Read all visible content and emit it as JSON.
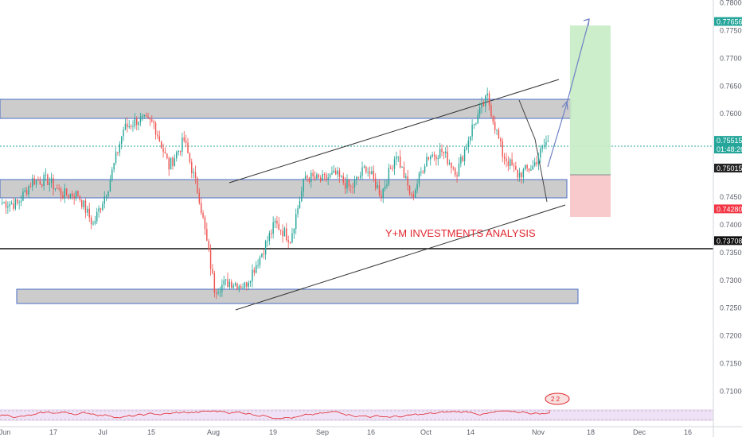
{
  "chart_data": {
    "type": "candlestick",
    "watermark_text": "Y+M INVESTMENTS ANALYSIS",
    "price_axis": {
      "ylim": [
        0.7075,
        0.7805
      ],
      "ticks": [
        "0.78000",
        "0.77500",
        "0.77000",
        "0.76500",
        "0.76000",
        "0.75500",
        "0.75000",
        "0.74500",
        "0.74000",
        "0.73500",
        "0.73000",
        "0.72500",
        "0.72000",
        "0.71500",
        "0.71000"
      ]
    },
    "time_axis": {
      "labels": [
        "Jun",
        "17",
        "Jul",
        "15",
        "Aug",
        "19",
        "Sep",
        "16",
        "Oct",
        "14",
        "Nov",
        "18",
        "Dec",
        "16"
      ]
    },
    "price_tags": [
      {
        "value": 0.77656,
        "text": "0.77656",
        "color": "#26a69a"
      },
      {
        "value": 0.75515,
        "text": "0.75515",
        "color": "#26a69a",
        "countdown": "01:48:26"
      },
      {
        "value": 0.75015,
        "text": "0.75015",
        "color": "#222222"
      },
      {
        "value": 0.7428,
        "text": "0.74280",
        "color": "#f23645"
      },
      {
        "value": 0.73708,
        "text": "0.73708",
        "color": "#111111"
      }
    ],
    "price_path": [
      [
        0.7455,
        0.7425
      ],
      [
        0.7395,
        0.748
      ],
      [
        0.746,
        0.75
      ],
      [
        0.7455,
        0.7505
      ],
      [
        0.744,
        0.747
      ],
      [
        0.75,
        0.741
      ],
      [
        0.736,
        0.744
      ],
      [
        0.748,
        0.746
      ],
      [
        0.7545,
        0.76
      ],
      [
        0.761,
        0.757
      ],
      [
        0.7595,
        0.757
      ],
      [
        0.752,
        0.749
      ],
      [
        0.7555,
        0.755
      ],
      [
        0.75,
        0.74
      ],
      [
        0.73,
        0.727
      ],
      [
        0.733,
        0.7265
      ],
      [
        0.729,
        0.729
      ],
      [
        0.735,
        0.7335
      ],
      [
        0.741,
        0.7395
      ],
      [
        0.735,
        0.74
      ],
      [
        0.7455,
        0.752
      ],
      [
        0.751,
        0.745
      ],
      [
        0.749,
        0.749
      ],
      [
        0.748,
        0.745
      ],
      [
        0.752,
        0.749
      ],
      [
        0.746,
        0.745
      ],
      [
        0.755,
        0.751
      ],
      [
        0.7475,
        0.742
      ],
      [
        0.749,
        0.7555
      ],
      [
        0.754,
        0.7525
      ],
      [
        0.749,
        0.75
      ],
      [
        0.7565,
        0.7585
      ],
      [
        0.764,
        0.762
      ],
      [
        0.756,
        0.7495
      ],
      [
        0.749,
        0.749
      ],
      [
        0.75,
        0.751
      ],
      [
        0.755,
        0.756
      ]
    ],
    "current_price": 0.75515
  }
}
